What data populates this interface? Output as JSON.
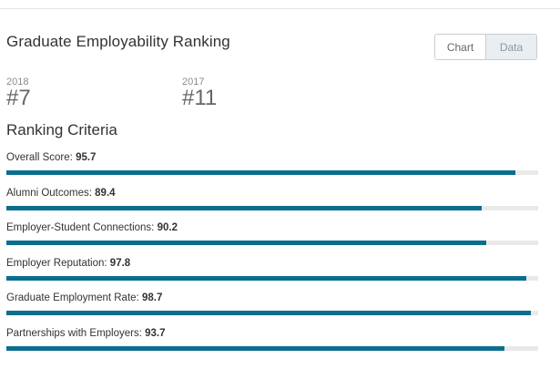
{
  "header": {
    "title": "Graduate Employability Ranking",
    "view_toggle": {
      "options": [
        "Chart",
        "Data"
      ],
      "selected": "Data"
    }
  },
  "rankings": [
    {
      "year": "2018",
      "rank": "#7"
    },
    {
      "year": "2017",
      "rank": "#11"
    }
  ],
  "criteria": {
    "heading": "Ranking Criteria",
    "max_score": 100,
    "items": [
      {
        "label": "Overall Score:",
        "score": 95.7,
        "score_text": "95.7"
      },
      {
        "label": "Alumni Outcomes:",
        "score": 89.4,
        "score_text": "89.4"
      },
      {
        "label": "Employer-Student Connections:",
        "score": 90.2,
        "score_text": "90.2"
      },
      {
        "label": "Employer Reputation:",
        "score": 97.8,
        "score_text": "97.8"
      },
      {
        "label": "Graduate Employment Rate:",
        "score": 98.7,
        "score_text": "98.7"
      },
      {
        "label": "Partnerships with Employers:",
        "score": 93.7,
        "score_text": "93.7"
      }
    ]
  },
  "colors": {
    "bar_fill": "#0b6e8e",
    "bar_track": "#e9e9e9",
    "toggle_active_bg": "#e9eef1"
  }
}
